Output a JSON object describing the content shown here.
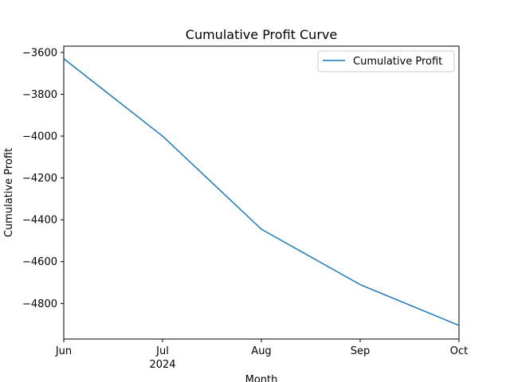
{
  "chart_data": {
    "type": "line",
    "title": "Cumulative Profit Curve",
    "xlabel": "Month",
    "ylabel": "Cumulative Profit",
    "x_ticks": [
      {
        "label": "Jun",
        "sublabel": ""
      },
      {
        "label": "Jul",
        "sublabel": "2024"
      },
      {
        "label": "Aug",
        "sublabel": ""
      },
      {
        "label": "Sep",
        "sublabel": ""
      },
      {
        "label": "Oct",
        "sublabel": ""
      }
    ],
    "y_ticks": [
      -3600,
      -3800,
      -4000,
      -4200,
      -4400,
      -4600,
      -4800
    ],
    "ylim": [
      -4970,
      -3570
    ],
    "series": [
      {
        "name": "Cumulative Profit",
        "color": "#1f77b4",
        "x": [
          "2024-06",
          "2024-07",
          "2024-08",
          "2024-09",
          "2024-10"
        ],
        "values": [
          -3630,
          -4000,
          -4445,
          -4710,
          -4905
        ]
      }
    ],
    "legend": {
      "position": "top-right"
    },
    "grid": false
  }
}
